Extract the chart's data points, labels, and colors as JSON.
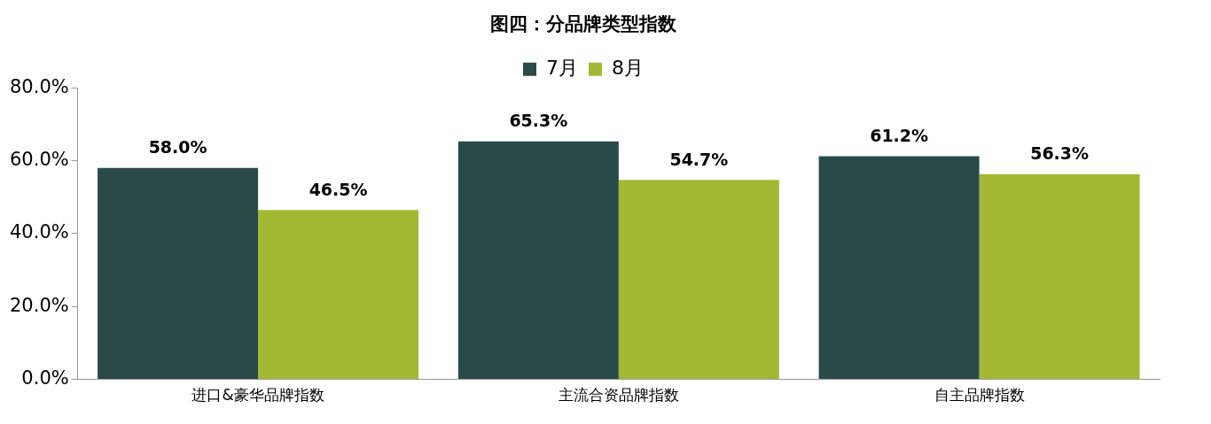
{
  "chart_data": {
    "type": "bar",
    "title": "图四：分品牌类型指数",
    "categories": [
      "进口&豪华品牌指数",
      "主流合资品牌指数",
      "自主品牌指数"
    ],
    "series": [
      {
        "name": "7月",
        "color": "#2a4a4a",
        "values": [
          58.0,
          65.3,
          61.2
        ],
        "value_labels": [
          "58.0%",
          "65.3%",
          "61.2%"
        ]
      },
      {
        "name": "8月",
        "color": "#a3b934",
        "values": [
          46.5,
          54.7,
          56.3
        ],
        "value_labels": [
          "46.5%",
          "54.7%",
          "56.3%"
        ]
      }
    ],
    "ylim": [
      0,
      80
    ],
    "yticks": [
      {
        "value": 0,
        "label": "0.0%"
      },
      {
        "value": 20,
        "label": "20.0%"
      },
      {
        "value": 40,
        "label": "40.0%"
      },
      {
        "value": 60,
        "label": "60.0%"
      },
      {
        "value": 80,
        "label": "80.0%"
      }
    ],
    "grid": false,
    "legend": "top"
  }
}
